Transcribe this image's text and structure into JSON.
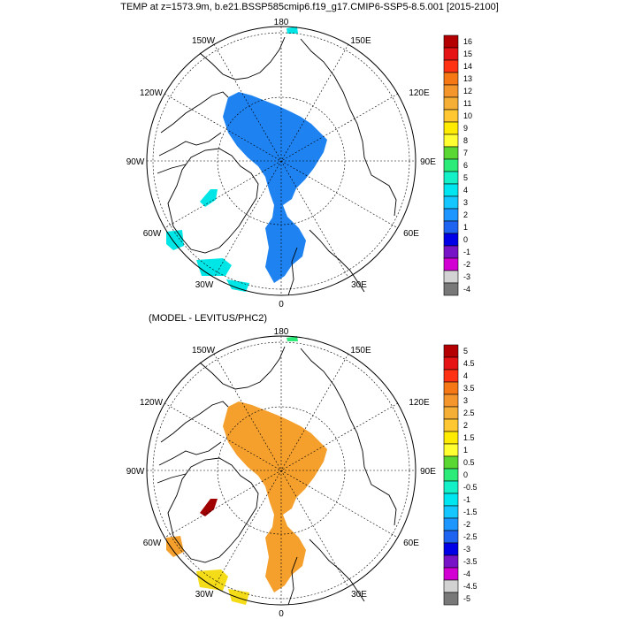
{
  "title": "TEMP at z=1573.9m, b.e21.BSSP585cmip6.f19_g17.CMIP6-SSP5-8.5.001 [2015-2100]",
  "subtitle": "(MODEL - LEVITUS/PHC2)",
  "longitude_labels": [
    "180",
    "150E",
    "120E",
    "90E",
    "60E",
    "30E",
    "0",
    "30W",
    "60W",
    "90W",
    "120W",
    "150W"
  ],
  "colors": {
    "outline": "#000000",
    "blue_field": "#1e82f0",
    "orange_field": "#f5a02d",
    "cyan_field": "#00e6e6",
    "dark_red": "#a00000",
    "yellow": "#f5dc19"
  },
  "top_colorbar": {
    "levels": [
      "16",
      "15",
      "14",
      "13",
      "12",
      "11",
      "10",
      "9",
      "8",
      "7",
      "6",
      "5",
      "4",
      "3",
      "2",
      "1",
      "0",
      "-1",
      "-2",
      "-3",
      "-4"
    ],
    "colors": [
      "#b40000",
      "#e61414",
      "#ff3214",
      "#f57814",
      "#f5962d",
      "#f5af37",
      "#ffc832",
      "#ffeb00",
      "#ffff32",
      "#5ad732",
      "#2deb78",
      "#14f0c8",
      "#00e6f0",
      "#14c8ff",
      "#1e96ff",
      "#1e64f0",
      "#0000e6",
      "#7814c8",
      "#d200d2",
      "#d2d2d2",
      "#787878"
    ]
  },
  "bottom_colorbar": {
    "levels": [
      "5",
      "4.5",
      "4",
      "3.5",
      "3",
      "2.5",
      "2",
      "1.5",
      "1",
      "0.5",
      "0",
      "-0.5",
      "-1",
      "-1.5",
      "-2",
      "-2.5",
      "-3",
      "-3.5",
      "-4",
      "-4.5",
      "-5"
    ],
    "colors": [
      "#b40000",
      "#e61414",
      "#ff3214",
      "#f57814",
      "#f5962d",
      "#f5af37",
      "#ffc832",
      "#ffeb00",
      "#ffff32",
      "#5ad732",
      "#2deb78",
      "#14f0c8",
      "#00e6f0",
      "#14c8ff",
      "#1e96ff",
      "#1e64f0",
      "#0000e6",
      "#7814c8",
      "#d200d2",
      "#d2d2d2",
      "#787878"
    ]
  }
}
